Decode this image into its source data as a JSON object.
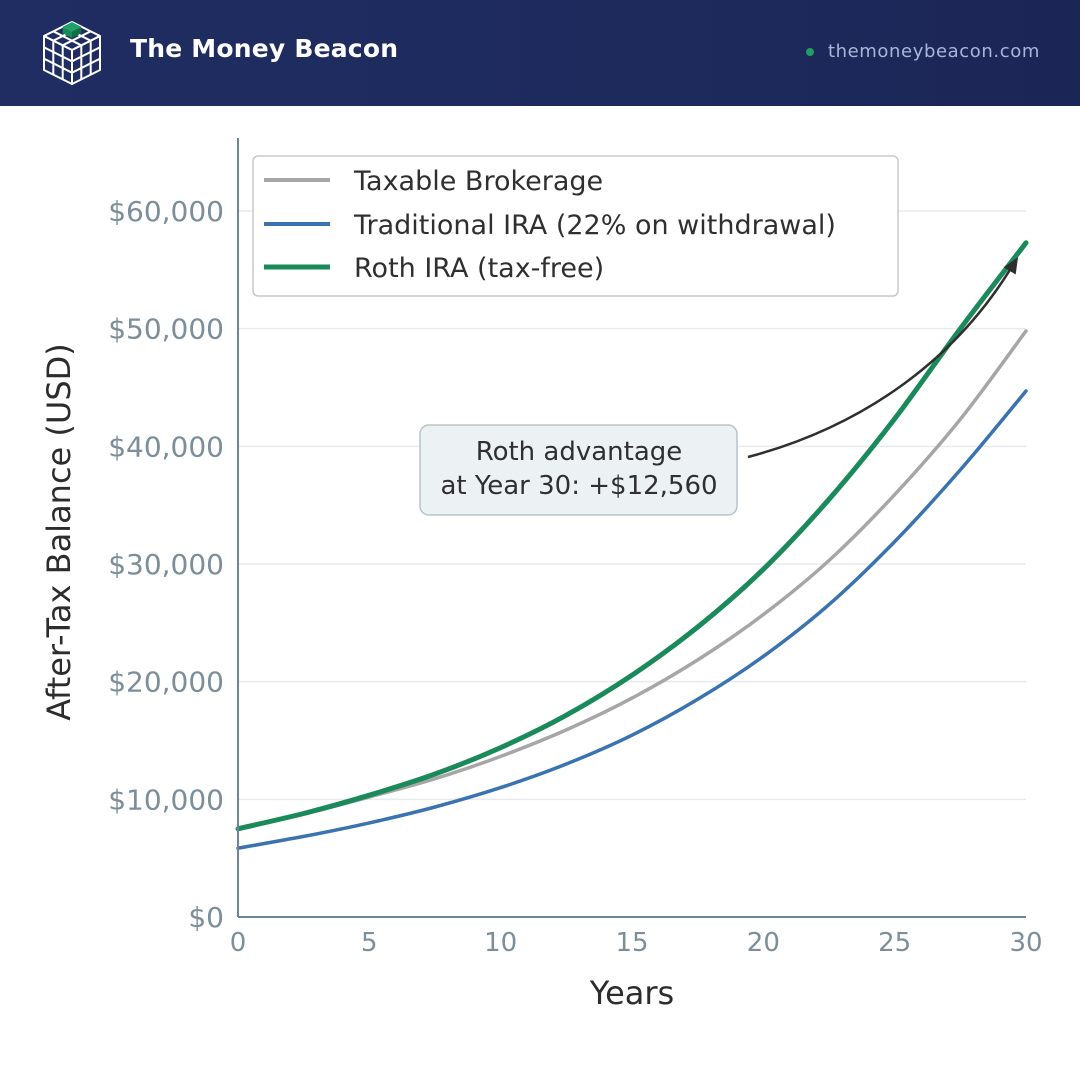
{
  "header": {
    "brand": "The Money Beacon",
    "website": "themoneybeacon.com",
    "logo_icon": "cube-grid-icon",
    "colors": {
      "background": "#1f2d62",
      "accent": "#1e9e63",
      "website_text": "#a9b6d8"
    }
  },
  "chart_data": {
    "type": "line",
    "title": "",
    "xlabel": "Years",
    "ylabel": "After-Tax Balance (USD)",
    "xlim": [
      0,
      30
    ],
    "ylim": [
      0,
      66000
    ],
    "x_ticks": [
      0,
      5,
      10,
      15,
      20,
      25,
      30
    ],
    "x_tick_labels": [
      "0",
      "5",
      "10",
      "15",
      "20",
      "25",
      "30"
    ],
    "y_ticks": [
      0,
      10000,
      20000,
      30000,
      40000,
      50000,
      60000
    ],
    "y_tick_labels": [
      "$0",
      "$10,000",
      "$20,000",
      "$30,000",
      "$40,000",
      "$50,000",
      "$60,000"
    ],
    "grid": "horizontal",
    "legend_position": "top-left",
    "x": [
      0,
      2.5,
      5,
      7.5,
      10,
      12.5,
      15,
      17.5,
      20,
      22.5,
      25,
      27.5,
      30
    ],
    "series": [
      {
        "name": "Taxable Brokerage",
        "color": "#a6a6a6",
        "values": [
          7500,
          8750,
          10200,
          11750,
          13650,
          15900,
          18600,
          21850,
          25700,
          30300,
          35900,
          42300,
          49800
        ]
      },
      {
        "name": "Traditional IRA (22% on withdrawal)",
        "color": "#3a73b0",
        "values": [
          5850,
          6850,
          8000,
          9350,
          11000,
          13000,
          15450,
          18500,
          22150,
          26550,
          31900,
          38000,
          44700
        ]
      },
      {
        "name": "Roth IRA (tax-free)",
        "color": "#1b8a5a",
        "values": [
          7500,
          8800,
          10350,
          12150,
          14400,
          17150,
          20550,
          24650,
          29550,
          35500,
          42350,
          50000,
          57300
        ]
      }
    ],
    "annotation": {
      "lines": [
        "Roth advantage",
        "at Year 30: +$12,560"
      ],
      "arrow_target": {
        "x": 30,
        "y": 56500
      }
    }
  }
}
